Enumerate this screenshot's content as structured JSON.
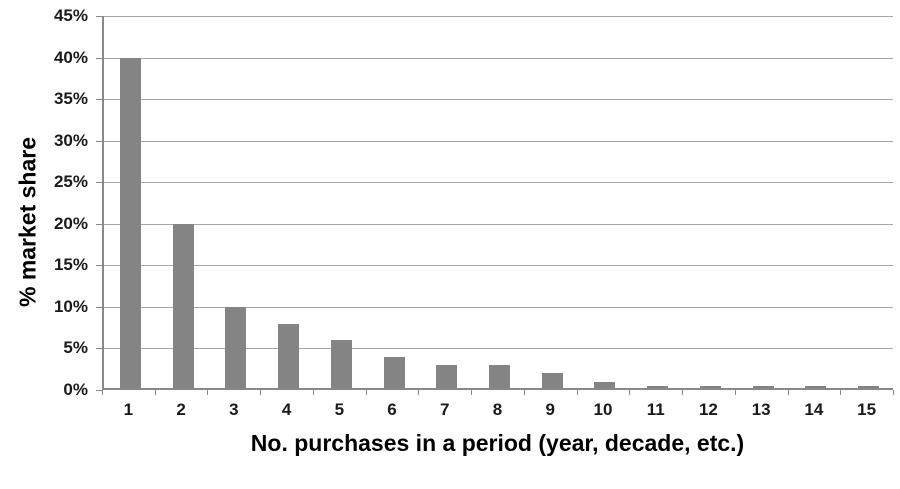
{
  "chart_data": {
    "type": "bar",
    "title": "",
    "xlabel": "No. purchases in a period (year, decade, etc.)",
    "ylabel": "% market share",
    "categories": [
      "1",
      "2",
      "3",
      "4",
      "5",
      "6",
      "7",
      "8",
      "9",
      "10",
      "11",
      "12",
      "13",
      "14",
      "15"
    ],
    "values": [
      40,
      20,
      10,
      8,
      6,
      4,
      3,
      3,
      2,
      1,
      0.5,
      0.5,
      0.5,
      0.5,
      0.5
    ],
    "ylim": [
      0,
      45
    ],
    "ytick_step": 5,
    "ytick_labels": [
      "0%",
      "5%",
      "10%",
      "15%",
      "20%",
      "25%",
      "30%",
      "35%",
      "40%",
      "45%"
    ],
    "grid": true,
    "legend_position": "none",
    "bar_color": "#848484",
    "gridline_color": "#a6a6a6",
    "axis_color": "#898989",
    "tick_text_color": "#1a1a1a",
    "background_color": "#ffffff"
  }
}
